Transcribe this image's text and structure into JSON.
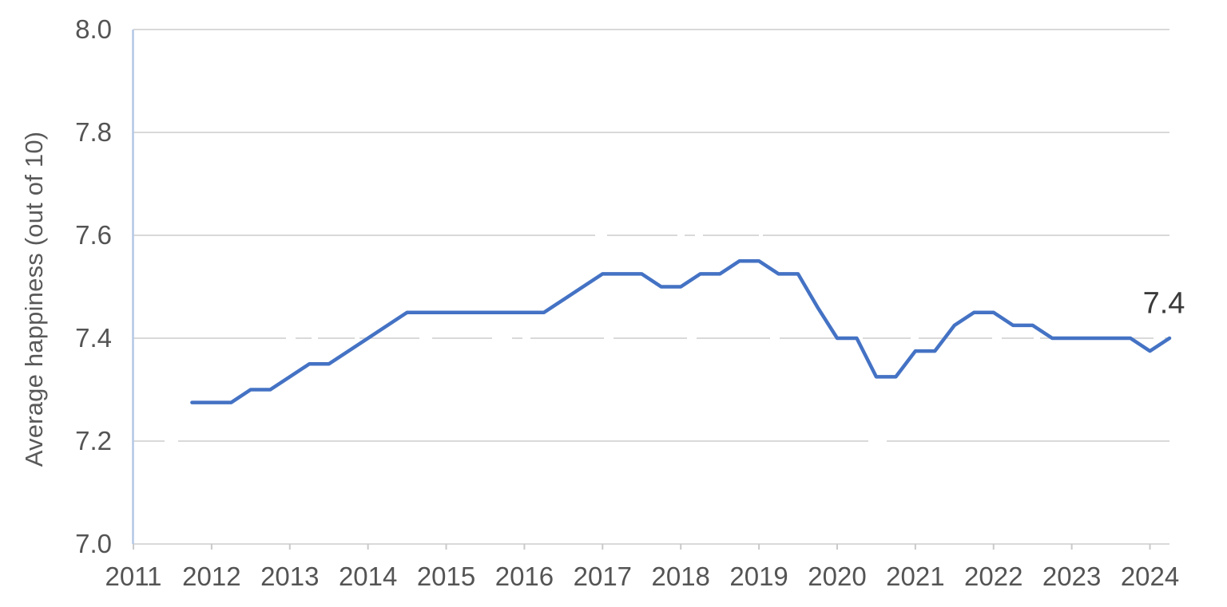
{
  "chart_data": {
    "type": "line",
    "title": "",
    "xlabel": "",
    "ylabel": "Average happiness (out of 10)",
    "ylim": [
      7.0,
      8.0
    ],
    "xlim": [
      2011,
      2024.25
    ],
    "yticks": [
      "7.0",
      "7.2",
      "7.4",
      "7.6",
      "7.8",
      "8.0"
    ],
    "ytick_values": [
      7.0,
      7.2,
      7.4,
      7.6,
      7.8,
      8.0
    ],
    "xticks": [
      "2011",
      "2012",
      "2013",
      "2014",
      "2015",
      "2016",
      "2017",
      "2018",
      "2019",
      "2020",
      "2021",
      "2022",
      "2023",
      "2024"
    ],
    "xtick_values": [
      2011,
      2012,
      2013,
      2014,
      2015,
      2016,
      2017,
      2018,
      2019,
      2020,
      2021,
      2022,
      2023,
      2024
    ],
    "grid": "horizontal gridlines only, light gray, partially long-dashed",
    "legend": "none",
    "end_label": "7.4",
    "colors": {
      "line": "#4472c4",
      "gridline": "#d9d9d9",
      "y_axis_line": "#b4c7e7",
      "x_tick_mark": "#c9c9c9",
      "tick_label": "#545454",
      "axis_title": "#595959",
      "end_label": "#3a3a3a"
    },
    "series": [
      {
        "name": "Average happiness (out of 10)",
        "color": "#4472c4",
        "x": [
          2011.75,
          2012.0,
          2012.25,
          2012.5,
          2012.75,
          2013.0,
          2013.25,
          2013.5,
          2013.75,
          2014.0,
          2014.25,
          2014.5,
          2014.75,
          2015.0,
          2015.25,
          2015.5,
          2015.75,
          2016.0,
          2016.25,
          2016.5,
          2016.75,
          2017.0,
          2017.25,
          2017.5,
          2017.75,
          2018.0,
          2018.25,
          2018.5,
          2018.75,
          2019.0,
          2019.25,
          2019.5,
          2019.75,
          2020.0,
          2020.25,
          2020.5,
          2020.75,
          2021.0,
          2021.25,
          2021.5,
          2021.75,
          2022.0,
          2022.25,
          2022.5,
          2022.75,
          2023.0,
          2023.25,
          2023.5,
          2023.75,
          2024.0,
          2024.25
        ],
        "values": [
          7.275,
          7.275,
          7.275,
          7.3,
          7.3,
          7.325,
          7.35,
          7.35,
          7.375,
          7.4,
          7.425,
          7.45,
          7.45,
          7.45,
          7.45,
          7.45,
          7.45,
          7.45,
          7.45,
          7.475,
          7.5,
          7.525,
          7.525,
          7.525,
          7.5,
          7.5,
          7.525,
          7.525,
          7.55,
          7.55,
          7.525,
          7.525,
          7.46,
          7.4,
          7.4,
          7.325,
          7.325,
          7.375,
          7.375,
          7.425,
          7.45,
          7.45,
          7.425,
          7.425,
          7.4,
          7.4,
          7.4,
          7.4,
          7.4,
          7.375,
          7.4
        ]
      }
    ]
  }
}
